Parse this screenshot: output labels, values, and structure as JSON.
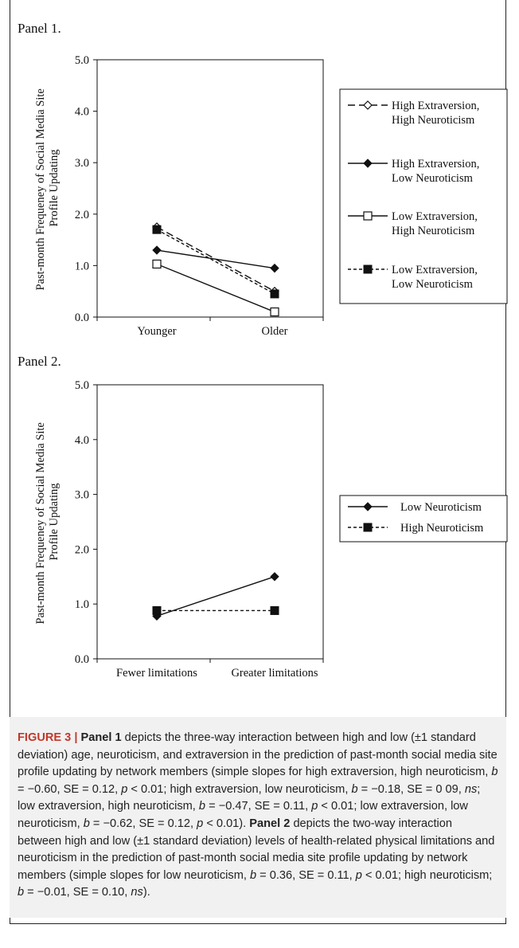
{
  "chart_data": [
    {
      "type": "line",
      "panel_label": "Panel 1.",
      "ylabel": "Past-month Frequeney of Social Media Site Profile Updating",
      "categories": [
        "Younger",
        "Older"
      ],
      "ylim": [
        0,
        5
      ],
      "yticks": [
        "0.0",
        "1.0",
        "2.0",
        "3.0",
        "4.0",
        "5.0"
      ],
      "grid": false,
      "legend_position": "right",
      "series": [
        {
          "name_line1": "High Extraversion,",
          "name_line2": "High Neuroticism",
          "values": [
            1.75,
            0.5
          ],
          "marker": "diamond-open",
          "dash": "long-dash",
          "color": "#111111"
        },
        {
          "name_line1": "High Extraversion,",
          "name_line2": "Low Neuroticism",
          "values": [
            1.3,
            0.95
          ],
          "marker": "diamond-filled",
          "dash": "solid",
          "color": "#111111"
        },
        {
          "name_line1": "Low Extraversion,",
          "name_line2": "High Neuroticism",
          "values": [
            1.03,
            0.1
          ],
          "marker": "square-open",
          "dash": "solid",
          "color": "#111111"
        },
        {
          "name_line1": "Low Extraversion,",
          "name_line2": "Low Neuroticism",
          "values": [
            1.7,
            0.45
          ],
          "marker": "square-filled",
          "dash": "short-dash",
          "color": "#111111"
        }
      ]
    },
    {
      "type": "line",
      "panel_label": "Panel 2.",
      "ylabel": "Past-month Frequeney of Social Media Site Profile Updating",
      "categories": [
        "Fewer limitations",
        "Greater limitations"
      ],
      "ylim": [
        0,
        5
      ],
      "yticks": [
        "0.0",
        "1.0",
        "2.0",
        "3.0",
        "4.0",
        "5.0"
      ],
      "grid": false,
      "legend_position": "right",
      "series": [
        {
          "name_line1": "Low Neuroticism",
          "name_line2": "",
          "values": [
            0.78,
            1.5
          ],
          "marker": "diamond-filled",
          "dash": "solid",
          "color": "#111111"
        },
        {
          "name_line1": "High Neuroticism",
          "name_line2": "",
          "values": [
            0.88,
            0.88
          ],
          "marker": "square-filled",
          "dash": "short-dash",
          "color": "#111111"
        }
      ]
    }
  ],
  "caption": {
    "figure_label": "FIGURE 3 |",
    "panel1_label": "Panel 1",
    "panel1_text": " depicts the three-way interaction between high and low (±1 standard deviation) age, neuroticism, and extraversion in the prediction of past-month social media site profile updating by network members (simple slopes for high extraversion, high neuroticism, ",
    "panel1_s1": " = −0.60, SE = 0.12, ",
    "panel1_s1b": " < 0.01; high extraversion, low neuroticism, ",
    "panel1_s2": " = −0.18, SE = 0 09, ",
    "panel1_s2b": "; low extraversion, high neuroticism, ",
    "panel1_s3": " = −0.47, SE = 0.11, ",
    "panel1_s3b": " < 0.01; low extraversion, low neuroticism, ",
    "panel1_s4": " = −0.62, SE = 0.12, ",
    "panel1_s4b": " < 0.01). ",
    "panel2_label": "Panel 2",
    "panel2_text": " depicts the two-way interaction between high and low (±1 standard deviation) levels of health-related physical limitations and neuroticism in the prediction of past-month social media site profile updating by network members (simple slopes for low neuroticism, ",
    "panel2_s1": " = 0.36, SE = 0.11, ",
    "panel2_s1b": " < 0.01; high neuroticism; ",
    "panel2_s2": " = −0.01, SE = 0.10, ",
    "panel2_end": ").",
    "sym_b": "b",
    "sym_p": "p",
    "sym_ns": "ns"
  }
}
